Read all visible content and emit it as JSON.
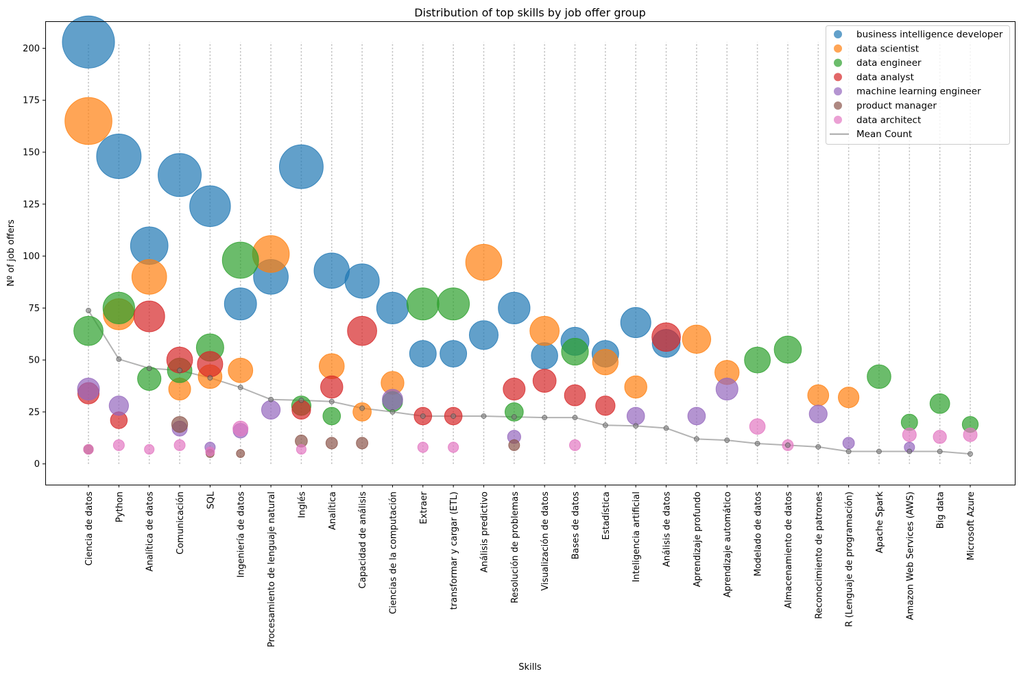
{
  "chart_data": {
    "type": "scatter",
    "subtype": "bubble",
    "title": "Distribution of top skills by job offer group",
    "xlabel": "Skills",
    "ylabel": "Nº of job offers",
    "ylim": [
      -10,
      213
    ],
    "yticks": [
      0,
      25,
      50,
      75,
      100,
      125,
      150,
      175,
      200
    ],
    "grid": "vertical dotted lines at each category",
    "legend_position": "top-right",
    "categories": [
      "Ciencia de datos",
      "Python",
      "Analítica de datos",
      "Comunicación",
      "SQL",
      "Ingeniería de datos",
      "Procesamiento de lenguaje natural",
      "Inglés",
      "Analítica",
      "Capacidad de análisis",
      "Ciencias de la computación",
      "Extraer",
      "transformar y cargar (ETL)",
      "Análisis predictivo",
      "Resolución de problemas",
      "Visualización de datos",
      "Bases de datos",
      "Estadística",
      "Inteligencia artificial",
      "Análisis de datos",
      "Aprendizaje profundo",
      "Aprendizaje automático",
      "Modelado de datos",
      "Almacenamiento de datos",
      "Reconocimiento de patrones",
      "R (Lenguaje de programación)",
      "Apache Spark",
      "Amazon Web Services (AWS)",
      "Big data",
      "Microsoft Azure"
    ],
    "series": [
      {
        "name": "business intelligence developer",
        "color": "#1f77b4",
        "values": [
          203,
          148,
          105,
          139,
          124,
          77,
          90,
          143,
          93,
          88,
          75,
          53,
          53,
          62,
          75,
          52,
          59,
          53,
          68,
          58,
          null,
          null,
          null,
          null,
          null,
          null,
          null,
          null,
          null,
          null
        ]
      },
      {
        "name": "data scientist",
        "color": "#ff7f0e",
        "values": [
          165,
          72,
          90,
          36,
          42,
          45,
          101,
          null,
          47,
          25,
          39,
          null,
          null,
          97,
          null,
          64,
          null,
          49,
          37,
          null,
          60,
          44,
          null,
          null,
          33,
          32,
          null,
          null,
          null,
          null
        ]
      },
      {
        "name": "data engineer",
        "color": "#2ca02c",
        "values": [
          64,
          75,
          41,
          45,
          56,
          98,
          null,
          28,
          23,
          null,
          30,
          77,
          77,
          null,
          25,
          null,
          54,
          null,
          null,
          null,
          null,
          null,
          50,
          55,
          null,
          null,
          42,
          20,
          29,
          19
        ]
      },
      {
        "name": "data analyst",
        "color": "#d62728",
        "values": [
          34,
          21,
          71,
          50,
          48,
          null,
          null,
          26,
          37,
          64,
          null,
          23,
          23,
          null,
          36,
          40,
          33,
          28,
          null,
          61,
          null,
          null,
          null,
          null,
          null,
          null,
          null,
          null,
          null,
          null
        ]
      },
      {
        "name": "machine learning engineer",
        "color": "#9467bd",
        "values": [
          36,
          28,
          null,
          17,
          8,
          16,
          26,
          null,
          null,
          null,
          31,
          null,
          null,
          null,
          13,
          null,
          null,
          null,
          23,
          null,
          23,
          36,
          null,
          null,
          24,
          10,
          null,
          8,
          null,
          null
        ]
      },
      {
        "name": "product manager",
        "color": "#8c564b",
        "values": [
          7,
          null,
          null,
          19,
          5,
          5,
          null,
          11,
          10,
          10,
          null,
          null,
          null,
          null,
          9,
          null,
          null,
          null,
          null,
          null,
          null,
          null,
          null,
          null,
          null,
          null,
          null,
          null,
          null,
          null
        ]
      },
      {
        "name": "data architect",
        "color": "#e377c2",
        "values": [
          7,
          9,
          7,
          9,
          6,
          17,
          null,
          7,
          null,
          null,
          null,
          8,
          8,
          null,
          null,
          null,
          9,
          null,
          null,
          null,
          null,
          null,
          18,
          9,
          null,
          null,
          null,
          14,
          13,
          14
        ]
      }
    ],
    "mean_line": {
      "name": "Mean Count",
      "color": "#808080",
      "values": [
        73.8,
        50.4,
        46.0,
        45.0,
        41.4,
        36.8,
        31.0,
        30.6,
        30.0,
        26.8,
        25.0,
        23.0,
        23.0,
        23.0,
        22.6,
        22.3,
        22.3,
        18.6,
        18.3,
        17.2,
        12.0,
        11.4,
        9.8,
        9.0,
        8.2,
        6.0,
        6.0,
        6.0,
        6.0,
        4.8
      ]
    }
  }
}
